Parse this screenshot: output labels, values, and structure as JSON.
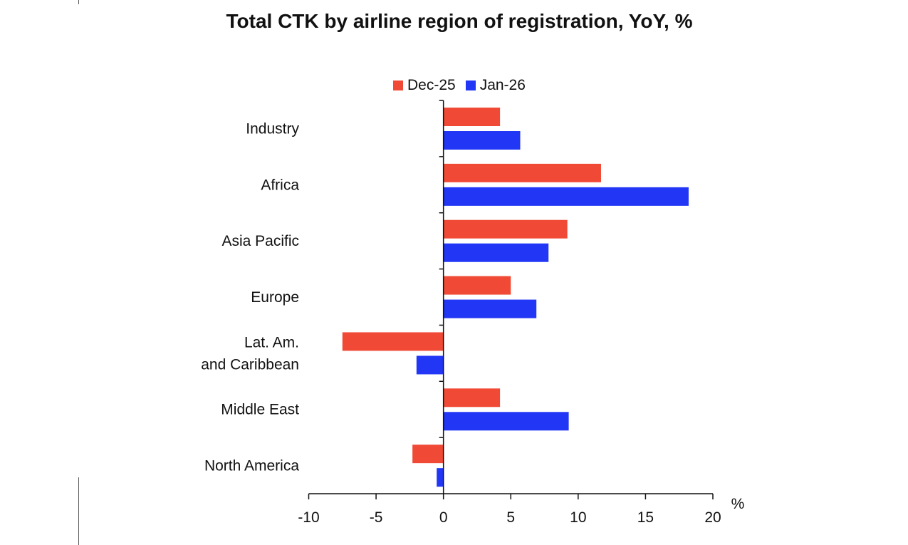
{
  "chart_data": {
    "type": "bar",
    "orientation": "horizontal",
    "title": "Total CTK by airline region of registration, YoY, %",
    "xlabel": "%",
    "xlim": [
      -10,
      20
    ],
    "xticks": [
      "-10",
      "-5",
      "0",
      "5",
      "10",
      "15",
      "20"
    ],
    "grid": false,
    "legend_position": "top",
    "categories": [
      [
        "Industry"
      ],
      [
        "Africa"
      ],
      [
        "Asia Pacific"
      ],
      [
        "Europe"
      ],
      [
        "Lat. Am.",
        "and Caribbean"
      ],
      [
        "Middle East"
      ],
      [
        "North America"
      ]
    ],
    "series": [
      {
        "name": "Dec-25",
        "color": "#f04a36",
        "values": [
          4.2,
          11.7,
          9.2,
          5.0,
          -7.5,
          4.2,
          -2.3
        ]
      },
      {
        "name": "Jan-26",
        "color": "#2236f5",
        "values": [
          5.7,
          18.2,
          7.8,
          6.9,
          -2.0,
          9.3,
          -0.5
        ]
      }
    ]
  }
}
